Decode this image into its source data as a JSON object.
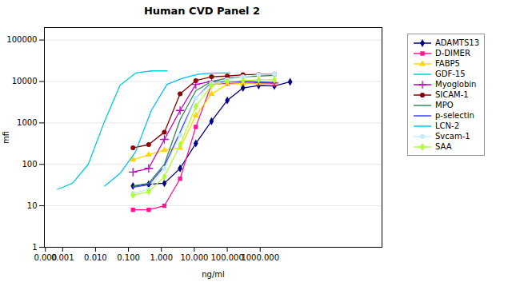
{
  "chart_data": {
    "type": "line",
    "title": "Human CVD Panel 2",
    "xlabel": "ng/ml",
    "ylabel": "mfi",
    "log": true,
    "grid": "y",
    "legend": "right",
    "xlim": [
      0.00028,
      5000000
    ],
    "ylim": [
      1,
      200000
    ],
    "xticks": [
      {
        "value": 0.0003,
        "label": "0.000"
      },
      0.001,
      {
        "value": 0.01,
        "label": "0.010"
      },
      {
        "value": 0.1,
        "label": "0.100"
      },
      {
        "value": 1,
        "label": "1.000"
      },
      {
        "value": 10,
        "label": "10.000"
      },
      {
        "value": 100,
        "label": "100.000"
      },
      {
        "value": 1000,
        "label": "1000.000"
      }
    ],
    "yticks": [
      1,
      10,
      100,
      1000,
      10000,
      100000
    ],
    "series": [
      {
        "name": "ADAMTS13",
        "color": "#000080",
        "marker": "diamond",
        "x": [
          0.137,
          0.411,
          1.23,
          3.7,
          11.1,
          33.3,
          100,
          300,
          900,
          2700,
          8100
        ],
        "values": [
          30,
          33,
          35,
          80,
          320,
          1100,
          3500,
          7000,
          8000,
          7800,
          9800
        ]
      },
      {
        "name": "D-DIMER",
        "color": "#FF1493",
        "marker": "square",
        "x": [
          0.137,
          0.411,
          1.23,
          3.7,
          11.1,
          33.3,
          100,
          300,
          900,
          2700
        ],
        "values": [
          8,
          8,
          10,
          45,
          800,
          8500,
          9000,
          9200,
          9000,
          8800
        ]
      },
      {
        "name": "FABP5",
        "color": "#FFD700",
        "marker": "triangle",
        "x": [
          0.137,
          0.411,
          1.23,
          3.7,
          11.1,
          33.3,
          100,
          300,
          900,
          2700
        ],
        "values": [
          130,
          170,
          220,
          250,
          1500,
          5000,
          8500,
          9000,
          9200,
          9200
        ]
      },
      {
        "name": "GDF-15",
        "color": "#00CFCF",
        "marker": "none",
        "x": [
          0.0007,
          0.002,
          0.006,
          0.018,
          0.055,
          0.164,
          0.493,
          1.48
        ],
        "values": [
          25,
          35,
          100,
          1000,
          8000,
          16000,
          18000,
          18000
        ]
      },
      {
        "name": "Myoglobin",
        "color": "#C000C0",
        "marker": "plus",
        "x": [
          0.137,
          0.411,
          1.23,
          3.7,
          11.1,
          33.3,
          100,
          300,
          900,
          2700
        ],
        "values": [
          65,
          80,
          400,
          2000,
          8500,
          10000,
          10000,
          9800,
          9500,
          9200
        ]
      },
      {
        "name": "SICAM-1",
        "color": "#8B0000",
        "marker": "circle",
        "x": [
          0.137,
          0.411,
          1.23,
          3.7,
          11.1,
          33.3,
          100,
          300,
          900,
          2700
        ],
        "values": [
          250,
          300,
          600,
          5000,
          10500,
          13000,
          13500,
          14500,
          14800,
          15000
        ]
      },
      {
        "name": "MPO",
        "color": "#2E8B57",
        "marker": "none",
        "x": [
          0.137,
          0.411,
          1.23,
          3.7,
          11.1,
          33.3,
          100,
          300,
          900,
          2700
        ],
        "values": [
          30,
          35,
          100,
          1200,
          6000,
          10000,
          12000,
          13000,
          13500,
          14000
        ]
      },
      {
        "name": "p-selectin",
        "color": "#4040FF",
        "marker": "none",
        "x": [
          0.137,
          0.411,
          1.23,
          3.7,
          11.1,
          33.3,
          100,
          300,
          900,
          2700
        ],
        "values": [
          28,
          32,
          90,
          600,
          4000,
          9500,
          10000,
          10000,
          9800,
          9500
        ]
      },
      {
        "name": "LCN-2",
        "color": "#00BFFF",
        "marker": "none",
        "x": [
          0.019,
          0.055,
          0.164,
          0.493,
          1.48,
          4.44,
          13.3,
          40,
          120
        ],
        "values": [
          30,
          60,
          200,
          2000,
          8500,
          12000,
          15000,
          16000,
          16000
        ]
      },
      {
        "name": "Svcam-1",
        "color": "#C8E8FF",
        "marker": "circle",
        "x": [
          0.137,
          0.411,
          1.23,
          3.7,
          11.1,
          33.3,
          100,
          300,
          900,
          2700
        ],
        "values": [
          20,
          25,
          80,
          500,
          4000,
          9000,
          11000,
          13000,
          14500,
          15000
        ]
      },
      {
        "name": "SAA",
        "color": "#ADFF2F",
        "marker": "diamond",
        "x": [
          0.137,
          0.411,
          1.23,
          3.7,
          11.1,
          33.3,
          100,
          300,
          900,
          2700
        ],
        "values": [
          18,
          22,
          50,
          300,
          2500,
          8000,
          10000,
          10500,
          11000,
          11000
        ]
      }
    ]
  }
}
